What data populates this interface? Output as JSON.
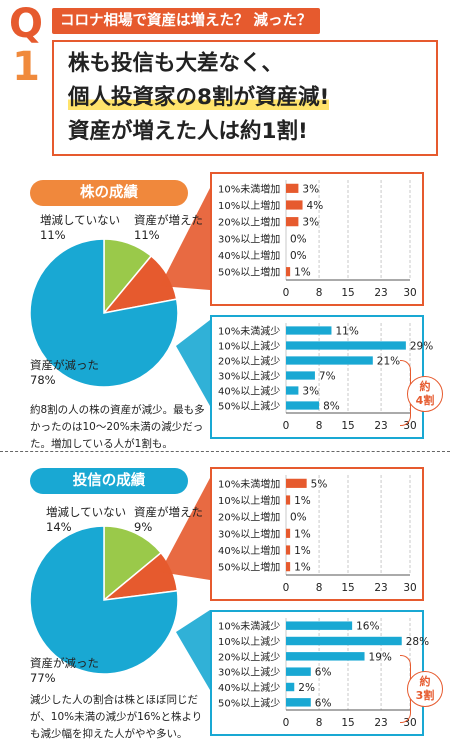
{
  "header": {
    "q_letter": "Q",
    "q_number": "1",
    "tag": "コロナ相場で資産は増えた？ 減った？",
    "line1": "株も投信も大差なく、",
    "line2": "個人投資家の8割が資産減!",
    "line3": "資産が増えた人は約1割!"
  },
  "colors": {
    "orange": "#e65a2e",
    "blue": "#19a8d3",
    "green": "#9ac94a"
  },
  "chart_data": [
    {
      "type": "pie",
      "title": "株の成績",
      "slices": [
        {
          "label": "増減していない",
          "value": 11,
          "pct_label": "11%",
          "color": "#9ac94a"
        },
        {
          "label": "資産が増えた",
          "value": 11,
          "pct_label": "11%",
          "color": "#e65a2e"
        },
        {
          "label": "資産が減った",
          "value": 78,
          "pct_label": "78%",
          "color": "#19a8d3"
        }
      ],
      "note": "約8割の人の株の資産が減少。最も多かったのは10～20%未満の減少だった。増加している人が1割も。"
    },
    {
      "type": "bar",
      "orientation": "horizontal",
      "categories": [
        "10%未満増加",
        "10%以上増加",
        "20%以上増加",
        "30%以上増加",
        "40%以上増加",
        "50%以上増加"
      ],
      "values": [
        3,
        4,
        3,
        0,
        0,
        1
      ],
      "value_labels": [
        "3%",
        "4%",
        "3%",
        "0%",
        "0%",
        "1%"
      ],
      "color": "#e65a2e",
      "xticks": [
        0,
        8,
        15,
        23,
        30
      ],
      "xlim": [
        0,
        30
      ]
    },
    {
      "type": "bar",
      "orientation": "horizontal",
      "categories": [
        "10%未満減少",
        "10%以上減少",
        "20%以上減少",
        "30%以上減少",
        "40%以上減少",
        "50%以上減少"
      ],
      "values": [
        11,
        29,
        21,
        7,
        3,
        8
      ],
      "value_labels": [
        "11%",
        "29%",
        "21%",
        "7%",
        "3%",
        "8%"
      ],
      "color": "#19a8d3",
      "xticks": [
        0,
        8,
        15,
        23,
        30
      ],
      "xlim": [
        0,
        30
      ],
      "annotation": "約4割"
    },
    {
      "type": "pie",
      "title": "投信の成績",
      "slices": [
        {
          "label": "増減していない",
          "value": 14,
          "pct_label": "14%",
          "color": "#9ac94a"
        },
        {
          "label": "資産が増えた",
          "value": 9,
          "pct_label": "9%",
          "color": "#e65a2e"
        },
        {
          "label": "資産が減った",
          "value": 77,
          "pct_label": "77%",
          "color": "#19a8d3"
        }
      ],
      "note": "減少した人の割合は株とほぼ同じだが、10%未満の減少が16%と株よりも減少幅を抑えた人がやや多い。"
    },
    {
      "type": "bar",
      "orientation": "horizontal",
      "categories": [
        "10%未満増加",
        "10%以上増加",
        "20%以上増加",
        "30%以上増加",
        "40%以上増加",
        "50%以上増加"
      ],
      "values": [
        5,
        1,
        0,
        1,
        1,
        1
      ],
      "value_labels": [
        "5%",
        "1%",
        "0%",
        "1%",
        "1%",
        "1%"
      ],
      "color": "#e65a2e",
      "xticks": [
        0,
        8,
        15,
        23,
        30
      ],
      "xlim": [
        0,
        30
      ]
    },
    {
      "type": "bar",
      "orientation": "horizontal",
      "categories": [
        "10%未満減少",
        "10%以上減少",
        "20%以上減少",
        "30%以上減少",
        "40%以上減少",
        "50%以上減少"
      ],
      "values": [
        16,
        28,
        19,
        6,
        2,
        6
      ],
      "value_labels": [
        "16%",
        "28%",
        "19%",
        "6%",
        "2%",
        "6%"
      ],
      "color": "#19a8d3",
      "xticks": [
        0,
        8,
        15,
        23,
        30
      ],
      "xlim": [
        0,
        30
      ],
      "annotation": "約3割"
    }
  ]
}
